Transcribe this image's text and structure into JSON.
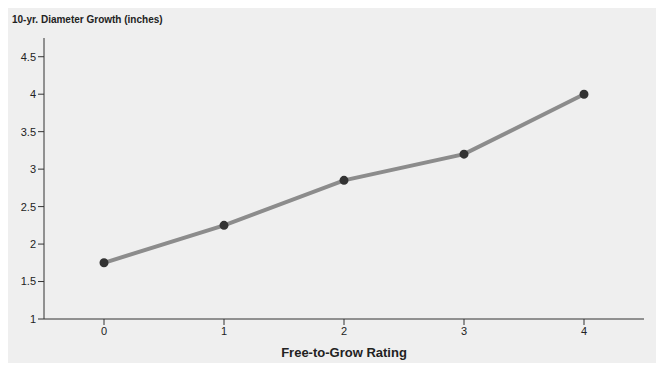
{
  "chart_data": {
    "type": "line",
    "y_label": "10-yr. Diameter Growth (inches)",
    "x_label": "Free-to-Grow Rating",
    "x": [
      0,
      1,
      2,
      3,
      4
    ],
    "values": [
      1.75,
      2.25,
      2.85,
      3.2,
      4.0
    ],
    "color": "#8c8c8c",
    "marker": "circle",
    "xlim": [
      -0.5,
      4.5
    ],
    "xticks": [
      0,
      1,
      2,
      3,
      4
    ],
    "ylim": [
      1,
      4.75
    ],
    "yticks": [
      1,
      1.5,
      2,
      2.5,
      3,
      3.5,
      4,
      4.5
    ],
    "grid": false
  }
}
